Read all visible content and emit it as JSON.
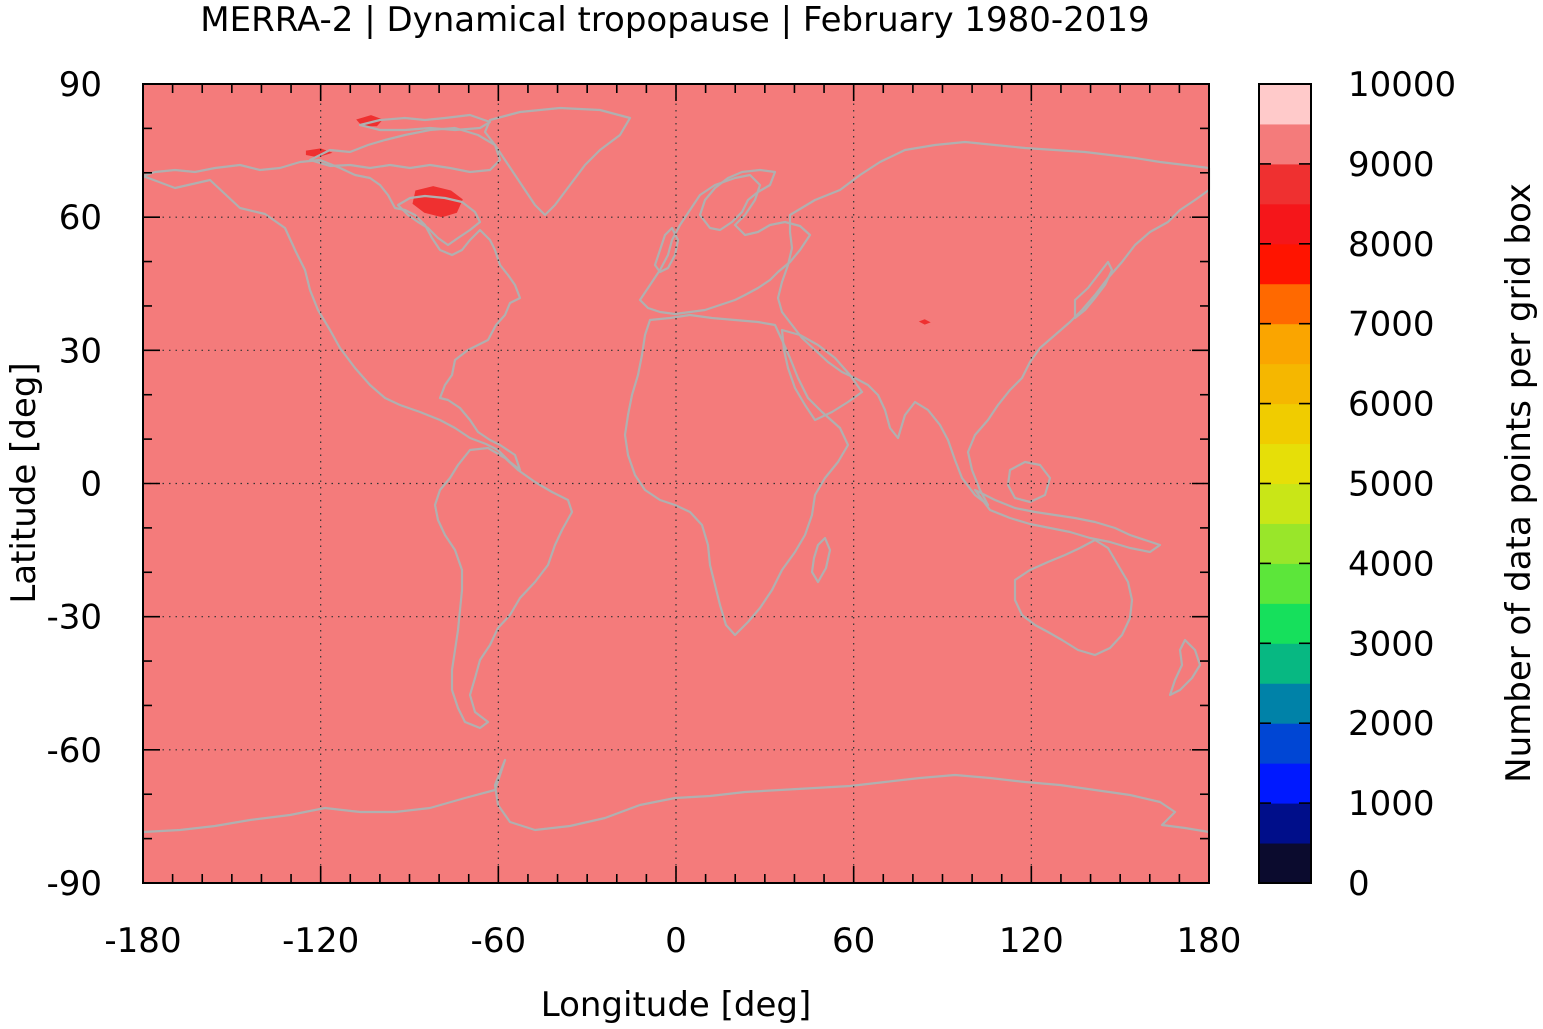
{
  "chart_data": {
    "type": "heatmap",
    "title": "MERRA-2 | Dynamical tropopause | February 1980-2019",
    "xlabel": "Longitude [deg]",
    "ylabel": "Latitude [deg]",
    "xlim": [
      -180,
      180
    ],
    "ylim": [
      -90,
      90
    ],
    "x_ticks": [
      "-180",
      "-120",
      "-60",
      "0",
      "60",
      "120",
      "180"
    ],
    "y_ticks": [
      "90",
      "60",
      "30",
      "0",
      "-30",
      "-60",
      "-90"
    ],
    "grid": true,
    "background_value": 9250,
    "background_color": "#f47b7b",
    "coastline_color": "#b0b0b0",
    "anomalies": [
      {
        "region": "Hudson Bay",
        "lon": -78,
        "lat": 62,
        "value": 8750
      },
      {
        "region": "Canadian Arctic",
        "lon": -102,
        "lat": 80,
        "value": 8750
      },
      {
        "region": "Beaufort coast",
        "lon": -120,
        "lat": 74,
        "value": 8750
      },
      {
        "region": "Tibet",
        "lon": 84,
        "lat": 36,
        "value": 8750
      }
    ],
    "colorbar": {
      "label": "Number of data points per grid box",
      "range": [
        0,
        10000
      ],
      "ticks": [
        "0",
        "1000",
        "2000",
        "3000",
        "4000",
        "5000",
        "6000",
        "7000",
        "8000",
        "9000",
        "10000"
      ],
      "colors": [
        "#0b0b2e",
        "#000e8a",
        "#0019ff",
        "#0046d4",
        "#0082a8",
        "#07b882",
        "#16e05c",
        "#5ce63a",
        "#99e62a",
        "#c9e617",
        "#e6df08",
        "#f0cc00",
        "#f5b700",
        "#faa500",
        "#ff6900",
        "#ff1400",
        "#f5161a",
        "#ef3030",
        "#f47b7b",
        "#ffcaca"
      ]
    }
  }
}
